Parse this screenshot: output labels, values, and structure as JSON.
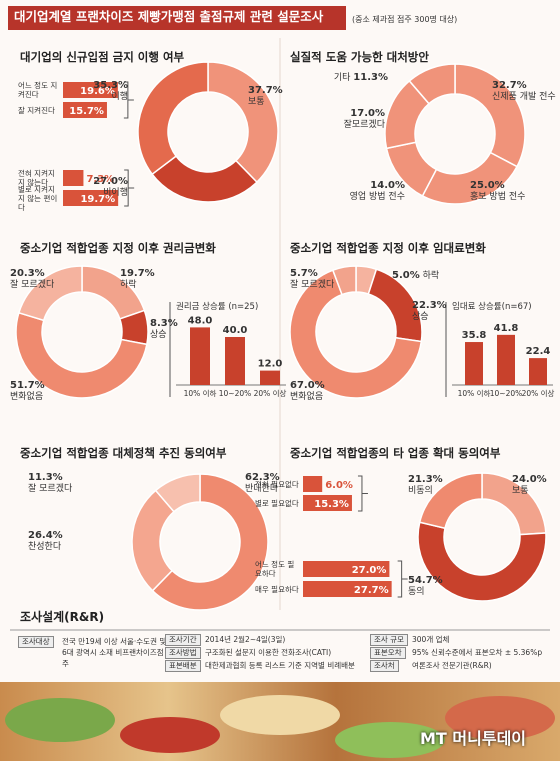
{
  "title": "대기업계열 프랜차이즈 제빵가맹점 출점규제 관련 설문조사",
  "note": "(중소 제과점 점주 300명 대상)",
  "chart_data": [
    {
      "type": "donut",
      "title": "대기업의 신규입점 금지 이행 여부",
      "categories": [
        "보통",
        "비이행",
        "이행"
      ],
      "values": [
        37.7,
        27.0,
        35.3
      ],
      "value_labels": [
        "37.7%",
        "27.0%",
        "35.3%"
      ],
      "colors": [
        "#f0937a",
        "#c8412c",
        "#e46a4d"
      ],
      "bar_color": "#d9533a",
      "breakdown": [
        {
          "orientation": "horizontal",
          "categories": [
            "어느 정도 지켜진다",
            "잘 지켜진다"
          ],
          "values": [
            19.6,
            15.7
          ],
          "value_labels": [
            "19.6%",
            "15.7%"
          ]
        },
        {
          "orientation": "horizontal",
          "categories": [
            "전혀 지켜지지 않는다",
            "별로 지켜지지 않는 편이다"
          ],
          "values": [
            7.3,
            19.7
          ],
          "value_labels": [
            "7.3%",
            "19.7%"
          ]
        }
      ]
    },
    {
      "type": "donut",
      "title": "실질적 도움 가능한 대처방안",
      "categories": [
        "신제품 개발 전수",
        "홍보 방법 전수",
        "영업 방법 전수",
        "잘모르겠다",
        "기타"
      ],
      "values": [
        32.7,
        25.0,
        14.0,
        17.0,
        11.3
      ],
      "value_labels": [
        "32.7%",
        "25.0%",
        "14.0%",
        "17.0%",
        "11.3%"
      ],
      "colors": [
        "#f0937a",
        "#f0937a",
        "#f0937a",
        "#f0937a",
        "#f0937a"
      ]
    },
    {
      "type": "donut",
      "title": "중소기업 적합업종 지정 이후 권리금변화",
      "categories": [
        "하락",
        "상승",
        "변화없음",
        "잘 모르겠다"
      ],
      "values": [
        19.7,
        8.3,
        51.7,
        20.3
      ],
      "value_labels": [
        "19.7%",
        "8.3%",
        "51.7%",
        "20.3%"
      ],
      "colors": [
        "#f2a38c",
        "#c8412c",
        "#ef8a6f",
        "#f5b39f"
      ],
      "bar_color": "#c8412c",
      "breakdown": [
        {
          "orientation": "vertical",
          "title": "권리금 상승률 (n=25)",
          "categories": [
            "10% 이하",
            "10~20%",
            "20% 이상"
          ],
          "values": [
            48.0,
            40.0,
            12.0
          ],
          "value_labels": [
            "48.0",
            "40.0",
            "12.0"
          ]
        }
      ]
    },
    {
      "type": "donut",
      "title": "중소기업 적합업종 지정 이후 임대료변화",
      "categories": [
        "하락",
        "상승",
        "변화없음",
        "잘 모르겠다"
      ],
      "values": [
        5.0,
        22.3,
        67.0,
        5.7
      ],
      "value_labels": [
        "5.0%",
        "22.3%",
        "67.0%",
        "5.7%"
      ],
      "colors": [
        "#f5b39f",
        "#c8412c",
        "#ef8a6f",
        "#f2a38c"
      ],
      "bar_color": "#c8412c",
      "breakdown": [
        {
          "orientation": "vertical",
          "title": "임대료 상승률(n=67)",
          "categories": [
            "10% 이하",
            "10~20%",
            "20% 이상"
          ],
          "values": [
            35.8,
            41.8,
            22.4
          ],
          "value_labels": [
            "35.8",
            "41.8",
            "22.4"
          ]
        }
      ]
    },
    {
      "type": "donut",
      "title": "중소기업 적합업종 대체정책 추진 동의여부",
      "categories": [
        "반대한다",
        "찬성한다",
        "잘 모르겠다"
      ],
      "values": [
        62.3,
        26.4,
        11.3
      ],
      "value_labels": [
        "62.3%",
        "26.4%",
        "11.3%"
      ],
      "colors": [
        "#ef8a6f",
        "#f4a68f",
        "#f7c0ae"
      ]
    },
    {
      "type": "donut",
      "title": "중소기업 적합업종의 타 업종 확대 동의여부",
      "categories": [
        "보통",
        "동의",
        "비동의"
      ],
      "values": [
        24.0,
        54.7,
        21.3
      ],
      "value_labels": [
        "24.0%",
        "54.7%",
        "21.3%"
      ],
      "colors": [
        "#f2a38c",
        "#c8412c",
        "#ef8a6f"
      ],
      "bar_color": "#d9533a",
      "breakdown": [
        {
          "orientation": "horizontal",
          "categories": [
            "전혀 필요없다",
            "별로 필요없다"
          ],
          "values": [
            6.0,
            15.3
          ],
          "value_labels": [
            "6.0%",
            "15.3%"
          ]
        },
        {
          "orientation": "horizontal",
          "categories": [
            "어느 정도 필요하다",
            "매우 필요하다"
          ],
          "values": [
            27.0,
            27.7
          ],
          "value_labels": [
            "27.0%",
            "27.7%"
          ]
        }
      ]
    }
  ],
  "survey": {
    "title": "조사설계(R&R)",
    "items": [
      {
        "label": "조사대상",
        "text": "전국 만19세 이상 서울·수도권 및 6대 광역시 소재 비프랜차이즈점주"
      },
      {
        "label": "조사기간",
        "text": "2014년 2월2~4일(3일)"
      },
      {
        "label": "조사방법",
        "text": "구조화된 설문지 이용한 전화조사(CATI)"
      },
      {
        "label": "표본배분",
        "text": "대한제과협회 등록 리스트 기준 지역별 비례배분"
      },
      {
        "label": "조사 규모",
        "text": "300개 업체"
      },
      {
        "label": "표본오차",
        "text": "95% 신뢰수준에서 표본오차 ± 5.36%p"
      },
      {
        "label": "조사처",
        "text": "여론조사 전문기관(R&R)"
      }
    ]
  },
  "logo": "MT 머니투데이"
}
